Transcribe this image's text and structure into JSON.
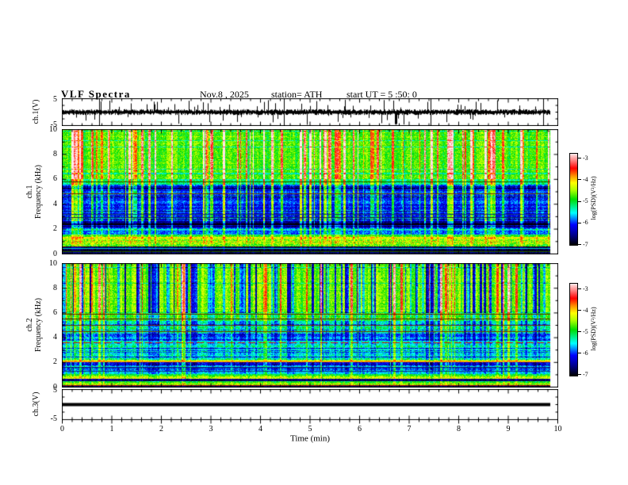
{
  "header": {
    "title": "VLF Spectra",
    "date": "Nov.8 , 2025",
    "station": "station= ATH",
    "start_ut": "start UT =  5 :50: 0"
  },
  "x_axis": {
    "label": "Time (min)",
    "ticks": [
      "0",
      "1",
      "2",
      "3",
      "4",
      "5",
      "6",
      "7",
      "8",
      "9",
      "10"
    ],
    "range_min": [
      0,
      10
    ],
    "minor_divisions": 5,
    "data_end_min": 9.84
  },
  "panels": {
    "ch1_wave": {
      "ylabel": "ch.1(V)",
      "yticks": [
        "5",
        "-5"
      ],
      "yrange": [
        -5,
        5
      ]
    },
    "spec1": {
      "ylabel_line1": "ch.1",
      "ylabel_line2": "Frequency (kHz)",
      "yticks": [
        "10",
        "8",
        "6",
        "4",
        "2",
        "0"
      ],
      "yrange_khz": [
        0,
        10
      ]
    },
    "spec2": {
      "ylabel_line1": "ch.2",
      "ylabel_line2": "Frequency (kHz)",
      "yticks": [
        "10",
        "8",
        "6",
        "4",
        "2",
        "0"
      ],
      "yrange_khz": [
        0,
        10
      ]
    },
    "ch3_wave": {
      "ylabel": "ch.3(V)",
      "yticks": [
        "5",
        "-5"
      ],
      "yrange": [
        -5,
        5
      ],
      "signal_value": 0
    }
  },
  "colorbars": [
    {
      "label": "log(PSD)(V²/Hz)",
      "ticks": [
        "-3",
        "-4",
        "-5",
        "-6",
        "-7"
      ],
      "range": [
        -7,
        -3
      ]
    },
    {
      "label": "log(PSD)(V²/Hz)",
      "ticks": [
        "-3",
        "-4",
        "-5",
        "-6",
        "-7"
      ],
      "range": [
        -7,
        -3
      ]
    }
  ],
  "colormap": {
    "stops": [
      [
        0,
        "#000000"
      ],
      [
        0.1,
        "#000082"
      ],
      [
        0.22,
        "#0000ff"
      ],
      [
        0.35,
        "#00ffff"
      ],
      [
        0.5,
        "#00dd00"
      ],
      [
        0.6,
        "#aaff00"
      ],
      [
        0.68,
        "#ffff00"
      ],
      [
        0.76,
        "#ff8c00"
      ],
      [
        0.84,
        "#ff0000"
      ],
      [
        0.92,
        "#ff7878"
      ],
      [
        1,
        "#ffeaea"
      ]
    ]
  },
  "chart_data": [
    {
      "type": "line",
      "name": "ch1_waveform",
      "ylabel": "ch.1(V)",
      "yrange": [
        -5,
        5
      ],
      "x_range_min": [
        0,
        10
      ],
      "data_end_min": 9.84,
      "description": "broadband VLF amplitude with dense impulsive sferic spikes around 0 V",
      "noise_amp": 0.8,
      "spike_prob": 0.12,
      "tall_spike_prob": 0.015,
      "seed": 11
    },
    {
      "type": "heatmap",
      "name": "ch1_spectrogram",
      "ylabel": "ch.1 Frequency (kHz)",
      "yrange_khz": [
        0,
        10
      ],
      "zrange_logpsd": [
        -7,
        -3
      ],
      "seed": 21,
      "bands": [
        [
          6.0,
          10.0,
          -4.85,
          0.3,
          1.5,
          0.3,
          0.1
        ],
        [
          5.55,
          6.0,
          -5.25,
          0.3,
          1.2,
          0.3,
          0.15
        ],
        [
          2.6,
          5.55,
          -6.1,
          0.28,
          1.25,
          0.2,
          0.2
        ],
        [
          2.05,
          2.6,
          -6.55,
          0.22,
          0.8,
          0.1,
          0.3
        ],
        [
          1.6,
          2.05,
          -5.85,
          0.3,
          0.7,
          0.2,
          0.35
        ],
        [
          1.35,
          1.6,
          -5.05,
          0.3,
          0.5,
          0.2,
          0.35
        ],
        [
          1.05,
          1.35,
          -4.55,
          0.35,
          0.4,
          0.2,
          0.3
        ],
        [
          0.55,
          1.05,
          -4.65,
          0.45,
          0.3,
          0.2,
          0.45
        ],
        [
          0.3,
          0.55,
          -6.75,
          0.25,
          0.25,
          0.1,
          0.3
        ],
        [
          0.0,
          0.3,
          -6.9,
          0.18,
          0.15,
          0.05,
          0.2
        ]
      ],
      "hlines": [
        [
          5.8,
          "#1e5a00",
          1,
          null
        ],
        [
          4.85,
          "#6b2a00",
          1,
          null
        ],
        [
          3.15,
          "#13336e",
          1,
          null
        ],
        [
          2.9,
          "#0a2450",
          1,
          null
        ],
        [
          0.4,
          "#00c8c8",
          1,
          null
        ],
        [
          0.13,
          "#2a6000",
          1,
          null
        ]
      ],
      "streaks": {
        "bright_prob": 0.3,
        "dark_prob": 0.06,
        "bright_amp": [
          0.5,
          1.4
        ],
        "dark_amp": [
          0.4,
          1.0
        ]
      }
    },
    {
      "type": "heatmap",
      "name": "ch2_spectrogram",
      "ylabel": "ch.2 Frequency (kHz)",
      "yrange_khz": [
        0,
        10
      ],
      "zrange_logpsd": [
        -7,
        -3
      ],
      "seed": 77,
      "bands": [
        [
          6.0,
          10.0,
          -4.75,
          0.28,
          1.3,
          1.5,
          0.1
        ],
        [
          5.35,
          6.0,
          -4.95,
          0.3,
          0.9,
          0.8,
          0.2
        ],
        [
          4.3,
          5.35,
          -5.3,
          0.32,
          0.9,
          0.7,
          0.25
        ],
        [
          3.75,
          4.3,
          -5.95,
          0.3,
          0.9,
          0.4,
          0.25
        ],
        [
          2.2,
          3.75,
          -5.45,
          0.3,
          0.8,
          0.4,
          0.2
        ],
        [
          1.95,
          2.2,
          -4.4,
          0.3,
          0.5,
          0.3,
          0.25
        ],
        [
          1.0,
          1.95,
          -5.9,
          0.32,
          0.7,
          0.3,
          0.4
        ],
        [
          0.82,
          1.0,
          -4.95,
          0.3,
          0.4,
          0.2,
          0.3
        ],
        [
          0.62,
          0.82,
          -4.45,
          0.35,
          0.3,
          0.2,
          0.3
        ],
        [
          0.45,
          0.62,
          -6.6,
          0.25,
          0.25,
          0.1,
          0.3
        ],
        [
          0.28,
          0.45,
          -5.05,
          0.3,
          0.3,
          0.2,
          0.3
        ],
        [
          0.12,
          0.28,
          -4.55,
          0.35,
          0.3,
          0.2,
          0.3
        ],
        [
          0.0,
          0.12,
          -6.8,
          0.2,
          0.2,
          0.1,
          0.2
        ]
      ],
      "hlines": [
        [
          5.9,
          "#5a2400",
          1,
          null
        ],
        [
          5.55,
          "#5a2400",
          1,
          null
        ],
        [
          5.0,
          "#6b2a00",
          1,
          null
        ],
        [
          4.5,
          "#6b2a00",
          1,
          null
        ],
        [
          3.55,
          "#d81200",
          1,
          [
            9,
            4
          ]
        ],
        [
          2.0,
          "#ff9a00",
          1,
          null
        ],
        [
          1.55,
          "#0a3a7a",
          1,
          null
        ],
        [
          1.25,
          "#0a3a7a",
          1,
          null
        ],
        [
          0.05,
          "#b40000",
          1,
          null
        ]
      ],
      "streaks": {
        "bright_prob": 0.13,
        "dark_prob": 0.3,
        "bright_amp": [
          0.5,
          1.3
        ],
        "dark_amp": [
          0.5,
          1.2
        ]
      }
    },
    {
      "type": "line",
      "name": "ch3_waveform",
      "ylabel": "ch.3(V)",
      "yrange": [
        -5,
        5
      ],
      "description": "flat channel: constant 0 V thick trace",
      "signal_value": 0,
      "line_thickness_px": 4,
      "data_end_min": 9.84
    }
  ]
}
